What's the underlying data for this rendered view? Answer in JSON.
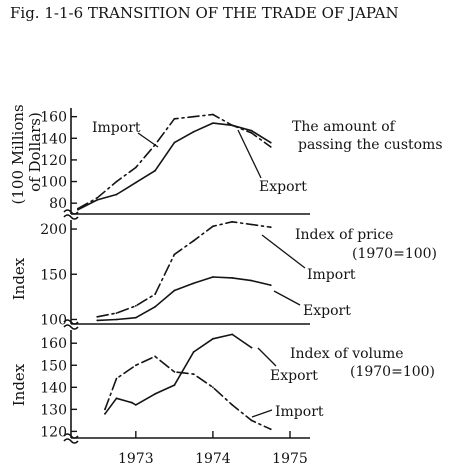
{
  "figure_title": "Fig. 1-1-6  TRANSITION OF THE TRADE OF JAPAN",
  "chart_data": [
    {
      "type": "line",
      "title": "The amount of passing the customs",
      "title_lines": [
        "The amount of",
        "passing the customs"
      ],
      "ylabel": "(100 Millions of Dollars)",
      "ylabel_lines": [
        "(100 Millions",
        "of Dollars)"
      ],
      "yticks": [
        80,
        100,
        120,
        140,
        160
      ],
      "ylim": [
        70,
        168
      ],
      "axis_break": true,
      "series": [
        {
          "name": "Import",
          "style": "dash-dot",
          "x": [
            1972.25,
            1972.5,
            1972.75,
            1973.0,
            1973.25,
            1973.5,
            1973.75,
            1974.0,
            1974.25,
            1974.5,
            1974.75
          ],
          "y": [
            75,
            85,
            100,
            113,
            134,
            158,
            160,
            162,
            152,
            145,
            132
          ]
        },
        {
          "name": "Export",
          "style": "solid",
          "x": [
            1972.25,
            1972.5,
            1972.75,
            1973.0,
            1973.25,
            1973.5,
            1973.75,
            1974.0,
            1974.25,
            1974.5,
            1974.75
          ],
          "y": [
            74,
            83,
            88,
            99,
            110,
            136,
            146,
            154,
            152,
            147,
            136
          ]
        }
      ]
    },
    {
      "type": "line",
      "title": "Index of price (1970=100)",
      "title_lines": [
        "Index of price",
        "(1970=100)"
      ],
      "ylabel": "Index",
      "yticks": [
        100,
        150,
        200
      ],
      "ylim": [
        95,
        210
      ],
      "axis_break": true,
      "series": [
        {
          "name": "Import",
          "style": "dash-dot",
          "x": [
            1972.5,
            1972.75,
            1973.0,
            1973.25,
            1973.5,
            1973.75,
            1974.0,
            1974.25,
            1974.5,
            1974.75
          ],
          "y": [
            103,
            107,
            115,
            128,
            172,
            187,
            203,
            208,
            205,
            202
          ]
        },
        {
          "name": "Export",
          "style": "solid",
          "x": [
            1972.5,
            1972.75,
            1973.0,
            1973.25,
            1973.5,
            1973.75,
            1974.0,
            1974.25,
            1974.5,
            1974.75
          ],
          "y": [
            99,
            100,
            102,
            114,
            132,
            140,
            147,
            146,
            143,
            138
          ]
        }
      ]
    },
    {
      "type": "line",
      "title": "Index of volume (1970=100)",
      "title_lines": [
        "Index of volume",
        "(1970=100)"
      ],
      "ylabel": "Index",
      "yticks": [
        120,
        130,
        140,
        150,
        160
      ],
      "ylim": [
        117,
        166
      ],
      "axis_break": true,
      "xlabel": "",
      "xticks": [
        "1973",
        "1974",
        "1975"
      ],
      "xtick_values": [
        1973.0,
        1974.0,
        1975.0
      ],
      "series": [
        {
          "name": "Export",
          "style": "solid",
          "x": [
            1972.6,
            1972.75,
            1972.95,
            1973.0,
            1973.25,
            1973.5,
            1973.75,
            1974.0,
            1974.25,
            1974.5
          ],
          "y": [
            128,
            135,
            133,
            132,
            137,
            141,
            156,
            162,
            164,
            158
          ]
        },
        {
          "name": "Import",
          "style": "dash-dot",
          "x": [
            1972.6,
            1972.75,
            1973.0,
            1973.25,
            1973.5,
            1973.75,
            1974.0,
            1974.25,
            1974.5,
            1974.75
          ],
          "y": [
            130,
            144,
            150,
            154,
            147,
            146,
            140,
            132,
            125,
            121
          ]
        }
      ]
    }
  ]
}
